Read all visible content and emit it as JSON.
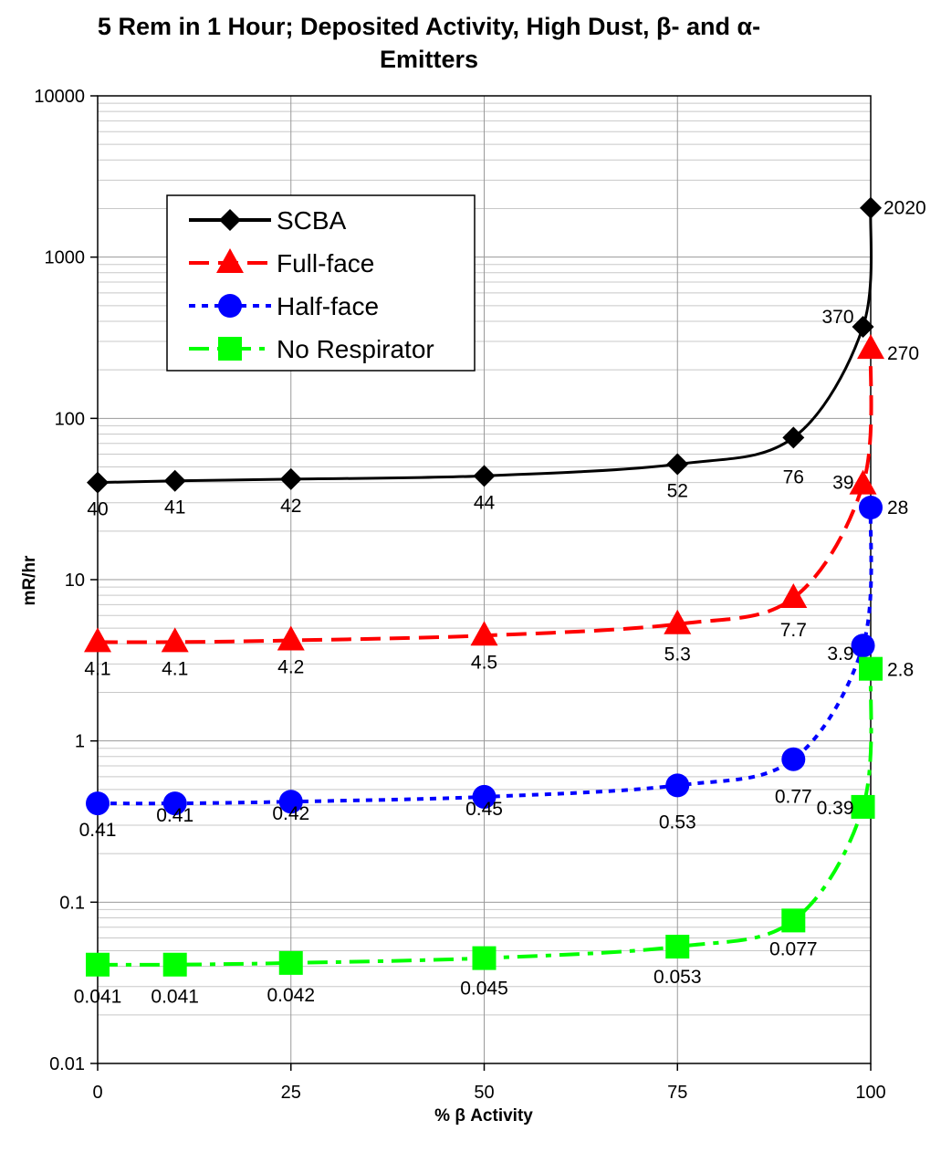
{
  "chart_data": {
    "type": "line",
    "title_line1": "5 Rem in 1 Hour; Deposited Activity, High Dust, β- and α-",
    "title_line2": "Emitters",
    "xlabel": "% β Activity",
    "ylabel": "mR/hr",
    "y_scale": "log",
    "ylim": [
      0.01,
      10000
    ],
    "xlim": [
      0,
      100
    ],
    "x_ticks": [
      0,
      25,
      50,
      75,
      100
    ],
    "y_ticks": [
      0.01,
      0.1,
      1,
      10,
      100,
      1000,
      10000
    ],
    "y_tick_labels": [
      "0.01",
      "0.1",
      "1",
      "10",
      "100",
      "1000",
      "10000"
    ],
    "grid": true,
    "legend_position": "top-left",
    "series": [
      {
        "name": "SCBA",
        "color": "#000000",
        "marker": "diamond",
        "line_style": "solid",
        "x": [
          0,
          10,
          25,
          50,
          75,
          90,
          99,
          100
        ],
        "y": [
          40,
          41,
          42,
          44,
          52,
          76,
          370,
          2020
        ],
        "labels": [
          "40",
          "41",
          "42",
          "44",
          "52",
          "76",
          "370",
          "2020"
        ]
      },
      {
        "name": "Full-face",
        "color": "#ff0000",
        "marker": "triangle",
        "line_style": "dashed",
        "x": [
          0,
          10,
          25,
          50,
          75,
          90,
          99,
          100
        ],
        "y": [
          4.1,
          4.1,
          4.2,
          4.5,
          5.3,
          7.7,
          39,
          270
        ],
        "labels": [
          "4.1",
          "4.1",
          "4.2",
          "4.5",
          "5.3",
          "7.7",
          "39",
          "270"
        ]
      },
      {
        "name": "Half-face",
        "color": "#0000ff",
        "marker": "circle",
        "line_style": "dotted",
        "x": [
          0,
          10,
          25,
          50,
          75,
          90,
          99,
          100
        ],
        "y": [
          0.41,
          0.41,
          0.42,
          0.45,
          0.53,
          0.77,
          3.9,
          28
        ],
        "labels": [
          "0.41",
          "0.41",
          "0.42",
          "0.45",
          "0.53",
          "0.77",
          "3.9",
          "28"
        ]
      },
      {
        "name": "No Respirator",
        "color": "#00ff00",
        "marker": "square",
        "line_style": "dashdot",
        "x": [
          0,
          10,
          25,
          50,
          75,
          90,
          99,
          100
        ],
        "y": [
          0.041,
          0.041,
          0.042,
          0.045,
          0.053,
          0.077,
          0.39,
          2.8
        ],
        "labels": [
          "0.041",
          "0.041",
          "0.042",
          "0.045",
          "0.053",
          "0.077",
          "0.39",
          "2.8"
        ]
      }
    ]
  }
}
